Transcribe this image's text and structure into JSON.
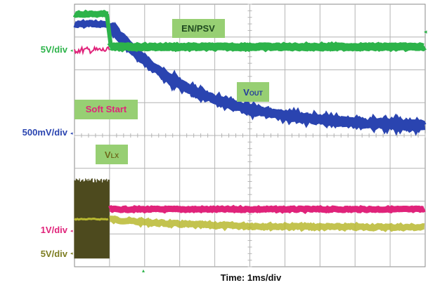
{
  "chart_data": {
    "type": "line",
    "time_scale": "Time: 1ms/div",
    "x_divisions": 10,
    "y_divisions": 8,
    "x_unit": "div",
    "transition_at_div": 1.0,
    "grid": true,
    "channels": [
      {
        "key": "en_psv",
        "label": "EN/PSV",
        "scale": "5V/div",
        "color": "#2db34a",
        "level_before_div": 7.7,
        "level_after_div": 6.7
      },
      {
        "key": "soft_start",
        "label": "Soft Start",
        "scale": "1V/div",
        "color": "#e0237a",
        "level_before_div": 6.6,
        "level_after_div": 1.75
      },
      {
        "key": "vout",
        "label_main": "V",
        "label_sub": "OUT",
        "scale": "500mV/div",
        "color": "#2a44b0",
        "level_before_div": 7.4,
        "level_after_div": 4.25,
        "decay_time_constant_div": 2.3
      },
      {
        "key": "vlx",
        "label_main": "V",
        "label_sub": "LX",
        "scale": "5V/div",
        "color": "#b8b830",
        "switching_color": "#4d4a1e",
        "level_before_div": 1.45,
        "level_after_div": 1.2
      }
    ]
  }
}
